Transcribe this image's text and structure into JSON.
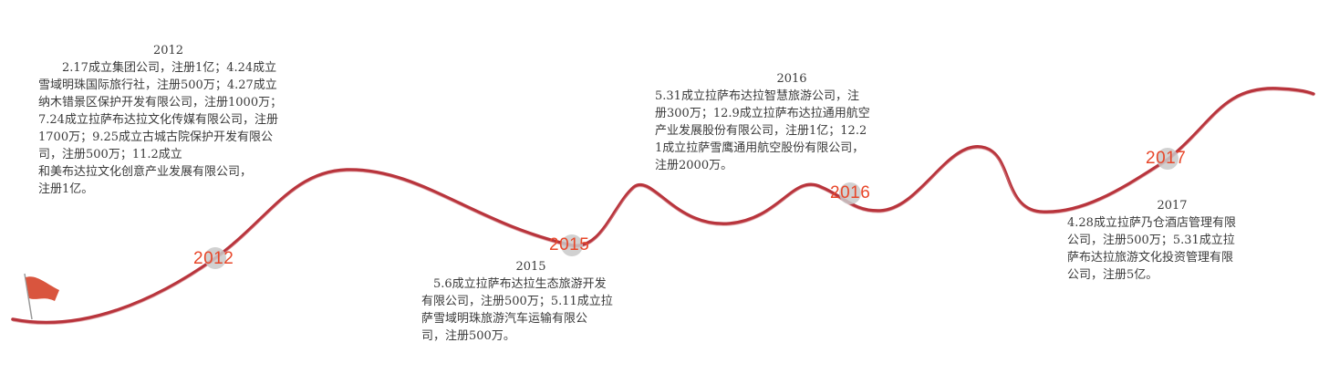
{
  "colors": {
    "curve": "#b8343c",
    "accent": "#e8472a",
    "dot": "#c9c9c9",
    "text": "#3a3a3a",
    "flag": "#d9553e"
  },
  "icons": {
    "start": "red-flag-icon"
  },
  "milestones": [
    {
      "label": "2012"
    },
    {
      "label": "2015"
    },
    {
      "label": "2016"
    },
    {
      "label": "2017"
    }
  ],
  "blocks": [
    {
      "year": "2012",
      "text": "　　2.17成立集团公司，注册1亿；4.24成立\n雪域明珠国际旅行社，注册500万；4.27成立\n纳木错景区保护开发有限公司，注册1000万；\n7.24成立拉萨布达拉文化传媒有限公司，注册\n1700万；9.25成立古城古院保护开发有限公\n司，注册500万；11.2成立\n和美布达拉文化创意产业发展有限公司，\n注册1亿。"
    },
    {
      "year": "2015",
      "text": "　5.6成立拉萨布达拉生态旅游开发\n有限公司，注册500万；5.11成立拉\n萨雪域明珠旅游汽车运输有限公\n司，注册500万。"
    },
    {
      "year": "2016",
      "text": "5.31成立拉萨布达拉智慧旅游公司，注\n册300万；12.9成立拉萨布达拉通用航空\n产业发展股份有限公司，注册1亿；12.2\n1成立拉萨雪鹰通用航空股份有限公司，\n注册2000万。"
    },
    {
      "year": "2017",
      "text": "4.28成立拉萨乃仓酒店管理有限\n公司，注册500万；5.31成立拉\n萨布达拉旅游文化投资管理有限\n公司，注册5亿。"
    }
  ]
}
